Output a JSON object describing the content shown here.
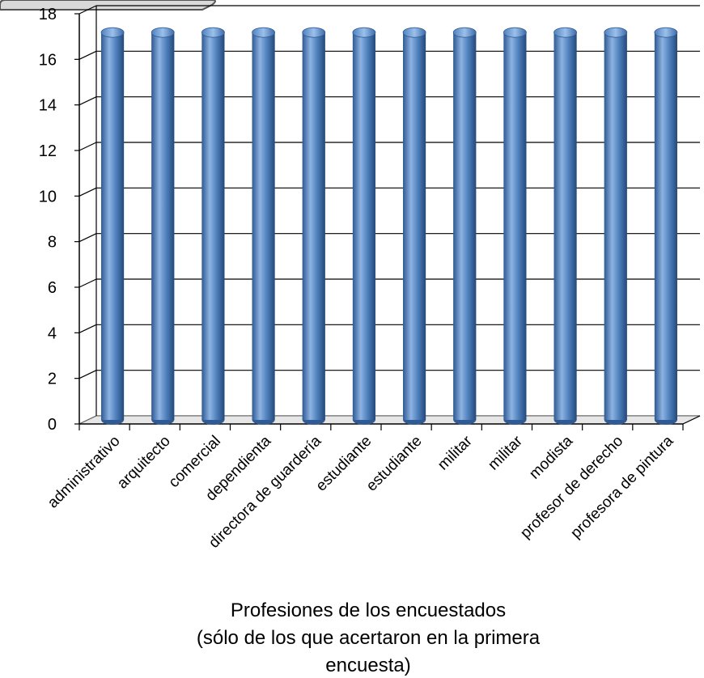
{
  "chart_data": {
    "type": "bar",
    "categories": [
      "administrativo",
      "arquitecto",
      "comercial",
      "dependienta",
      "directora de guardería",
      "estudiante",
      "estudiante",
      "militar",
      "militar",
      "modista",
      "profesor de derecho",
      "profesora de pintura"
    ],
    "values": [
      17,
      17,
      17,
      17,
      17,
      17,
      17,
      17,
      17,
      17,
      17,
      17
    ],
    "title": "",
    "xlabel_lines": [
      "Profesiones de los encuestados",
      "(sólo de los que acertaron en la primera",
      "encuesta)"
    ],
    "ylabel": "",
    "ylim": [
      0,
      18
    ],
    "yticks": [
      "0",
      "2",
      "4",
      "6",
      "8",
      "10",
      "12",
      "14",
      "16",
      "18"
    ],
    "grid": true,
    "legend": "none",
    "style": "3d-cylinder",
    "colors": {
      "bar": "#4F81BD",
      "bar_dark": "#2F5A93",
      "bar_light": "#8DB3E2",
      "grid": "#000000"
    }
  }
}
